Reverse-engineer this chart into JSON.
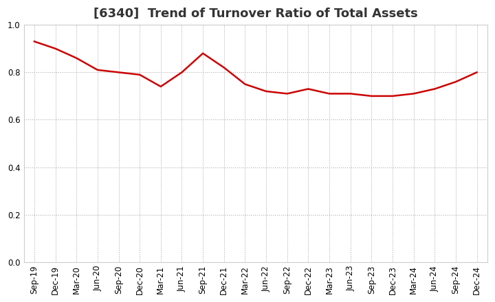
{
  "title": "[6340]  Trend of Turnover Ratio of Total Assets",
  "x_labels": [
    "Sep-19",
    "Dec-19",
    "Mar-20",
    "Jun-20",
    "Sep-20",
    "Dec-20",
    "Mar-21",
    "Jun-21",
    "Sep-21",
    "Dec-21",
    "Mar-22",
    "Jun-22",
    "Sep-22",
    "Dec-22",
    "Mar-23",
    "Jun-23",
    "Sep-23",
    "Dec-23",
    "Mar-24",
    "Jun-24",
    "Sep-24",
    "Dec-24"
  ],
  "values": [
    0.93,
    0.9,
    0.86,
    0.81,
    0.8,
    0.79,
    0.74,
    0.8,
    0.88,
    0.82,
    0.75,
    0.72,
    0.71,
    0.73,
    0.71,
    0.71,
    0.7,
    0.7,
    0.71,
    0.73,
    0.76,
    0.8
  ],
  "line_color": "#cc0000",
  "line_width": 1.8,
  "ylim": [
    0.0,
    1.0
  ],
  "yticks": [
    0.0,
    0.2,
    0.4,
    0.6,
    0.8,
    1.0
  ],
  "background_color": "#ffffff",
  "grid_color": "#999999",
  "title_fontsize": 13,
  "tick_fontsize": 8.5,
  "title_color": "#333333"
}
